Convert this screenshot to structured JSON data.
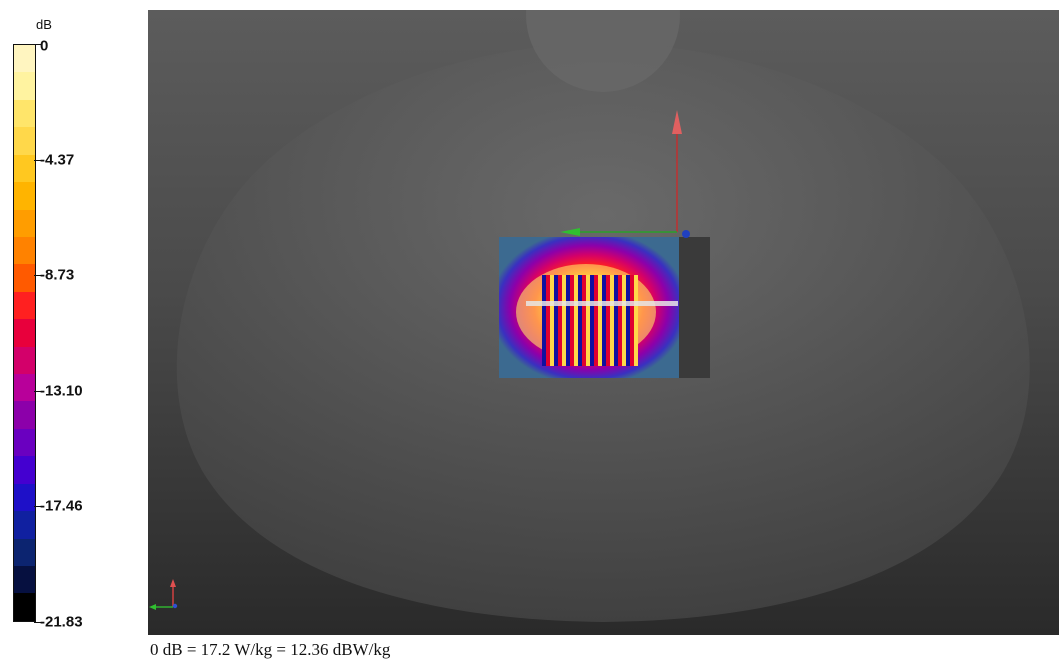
{
  "legend": {
    "unit": "dB",
    "ticks": [
      {
        "label": "0",
        "fraction": 0.0
      },
      {
        "label": "-4.37",
        "fraction": 0.2
      },
      {
        "label": "-8.73",
        "fraction": 0.4
      },
      {
        "label": "-13.10",
        "fraction": 0.6
      },
      {
        "label": "-17.46",
        "fraction": 0.8
      },
      {
        "label": "-21.83",
        "fraction": 1.0
      }
    ],
    "colors": [
      "#fff5c0",
      "#fff3a0",
      "#ffe56a",
      "#ffd84a",
      "#ffc820",
      "#ffb400",
      "#ff9d00",
      "#ff8200",
      "#ff5a00",
      "#ff2020",
      "#e8003c",
      "#d3006a",
      "#b8009a",
      "#8c00aa",
      "#6a00c0",
      "#4400d0",
      "#1e10c8",
      "#1020a0",
      "#0c2470",
      "#061040",
      "#000000"
    ]
  },
  "footer": {
    "reference": "0 dB = 17.2 W/kg = 12.36 dBW/kg"
  }
}
